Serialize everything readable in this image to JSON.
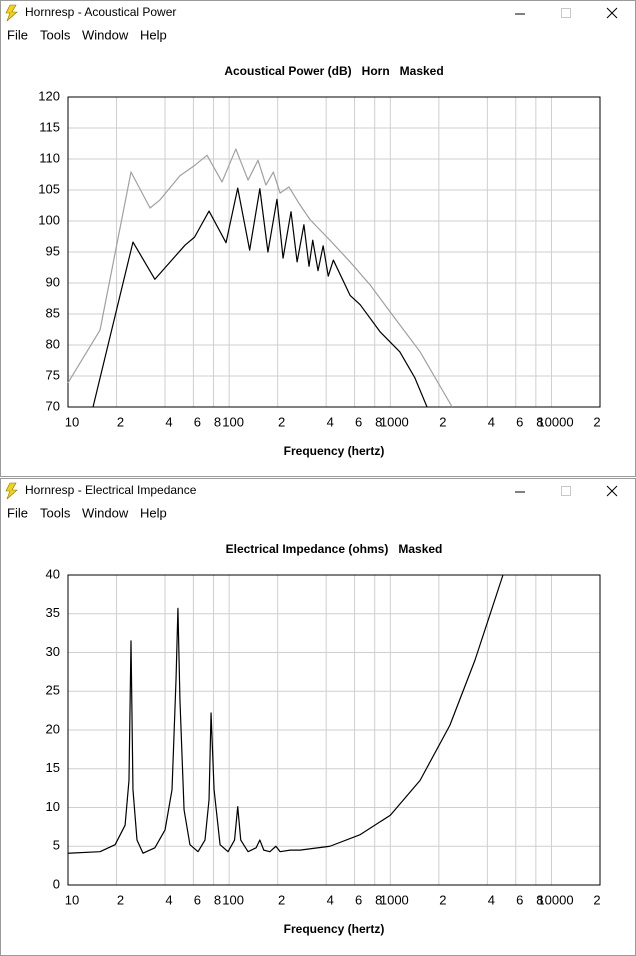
{
  "windows": [
    {
      "title": "Hornresp - Acoustical Power",
      "menu": [
        "File",
        "Tools",
        "Window",
        "Help"
      ]
    },
    {
      "title": "Hornresp - Electrical Impedance",
      "menu": [
        "File",
        "Tools",
        "Window",
        "Help"
      ]
    }
  ],
  "chart_data": [
    {
      "type": "line",
      "title": "Acoustical Power (dB)   Horn   Masked",
      "xlabel": "Frequency (hertz)",
      "xscale": "log",
      "xlim": [
        10,
        20000
      ],
      "xticks": [
        10,
        {
          "value": 20,
          "label": "2"
        },
        {
          "value": 40,
          "label": "4"
        },
        {
          "value": 60,
          "label": "6"
        },
        {
          "value": 80,
          "label": "8"
        },
        100,
        {
          "value": 200,
          "label": "2"
        },
        {
          "value": 400,
          "label": "4"
        },
        {
          "value": 600,
          "label": "6"
        },
        {
          "value": 800,
          "label": "8"
        },
        1000,
        {
          "value": 2000,
          "label": "2"
        },
        {
          "value": 4000,
          "label": "4"
        },
        {
          "value": 6000,
          "label": "6"
        },
        {
          "value": 8000,
          "label": "8"
        },
        10000,
        {
          "value": 20000,
          "label": "2"
        }
      ],
      "ylim": [
        70,
        120
      ],
      "yticks": [
        70,
        75,
        80,
        85,
        90,
        95,
        100,
        105,
        110,
        115,
        120
      ],
      "grid": true,
      "series": [
        {
          "color": "#a0a0a0",
          "x": [
            10,
            15.8,
            24.6,
            32.3,
            37.2,
            49.5,
            61.3,
            72.9,
            90.3,
            110,
            131,
            151,
            169,
            188,
            207,
            235,
            275,
            318,
            422,
            563,
            749,
            1000,
            1530,
            2420
          ],
          "values": [
            73.9,
            82.4,
            107.9,
            102.1,
            103.4,
            107.3,
            109,
            110.6,
            106.3,
            111.6,
            106.6,
            109.8,
            105.8,
            107.9,
            104.5,
            105.5,
            102.6,
            100.2,
            96.9,
            93.4,
            89.7,
            85.3,
            78.9,
            70
          ]
        },
        {
          "color": "#000000",
          "x": [
            14.3,
            25.3,
            34.6,
            53.2,
            61,
            75,
            95.6,
            113,
            134,
            155,
            174,
            198,
            216,
            242,
            264,
            291,
            313,
            330,
            356,
            383,
            412,
            443,
            563,
            650,
            866,
            1145,
            1420,
            1690
          ],
          "values": [
            70,
            96.6,
            90.6,
            96.1,
            97.4,
            101.6,
            96.5,
            105.3,
            95.3,
            105.2,
            95,
            103.5,
            94,
            101.5,
            93.4,
            99.4,
            92.7,
            96.9,
            92,
            96,
            91.1,
            93.7,
            88,
            86.5,
            82.1,
            78.9,
            74.7,
            70
          ]
        }
      ]
    },
    {
      "type": "line",
      "title": "Electrical Impedance (ohms)   Masked",
      "xlabel": "Frequency (hertz)",
      "xscale": "log",
      "xlim": [
        10,
        20000
      ],
      "xticks": [
        10,
        {
          "value": 20,
          "label": "2"
        },
        {
          "value": 40,
          "label": "4"
        },
        {
          "value": 60,
          "label": "6"
        },
        {
          "value": 80,
          "label": "8"
        },
        100,
        {
          "value": 200,
          "label": "2"
        },
        {
          "value": 400,
          "label": "4"
        },
        {
          "value": 600,
          "label": "6"
        },
        {
          "value": 800,
          "label": "8"
        },
        1000,
        {
          "value": 2000,
          "label": "2"
        },
        {
          "value": 4000,
          "label": "4"
        },
        {
          "value": 6000,
          "label": "6"
        },
        {
          "value": 8000,
          "label": "8"
        },
        10000,
        {
          "value": 20000,
          "label": "2"
        }
      ],
      "ylim": [
        0,
        40
      ],
      "yticks": [
        0,
        5,
        10,
        15,
        20,
        25,
        30,
        35,
        40
      ],
      "grid": true,
      "series": [
        {
          "color": "#000000",
          "x": [
            10,
            15.8,
            19.6,
            22.6,
            23.9,
            24.6,
            25.3,
            26.8,
            29.2,
            34.6,
            40,
            44.2,
            46.8,
            48.1,
            49.5,
            52.5,
            57.1,
            64.1,
            70.8,
            75,
            77.2,
            80.6,
            87.8,
            98.4,
            108,
            113,
            118,
            131,
            147,
            155,
            164,
            179,
            195,
            207,
            239,
            275,
            422,
            650,
            1000,
            1530,
            2340,
            3350,
            5000
          ],
          "values": [
            4.1,
            4.3,
            5.2,
            7.7,
            13.5,
            31.5,
            12.3,
            5.8,
            4.1,
            4.8,
            7.1,
            12.3,
            26.5,
            35.7,
            23.9,
            9.7,
            5.2,
            4.3,
            5.8,
            11,
            22.2,
            12.3,
            5.2,
            4.3,
            5.8,
            10.1,
            5.8,
            4.3,
            4.8,
            5.8,
            4.5,
            4.3,
            5,
            4.3,
            4.5,
            4.5,
            5,
            6.5,
            9,
            13.5,
            20.6,
            29,
            40
          ]
        }
      ]
    }
  ]
}
